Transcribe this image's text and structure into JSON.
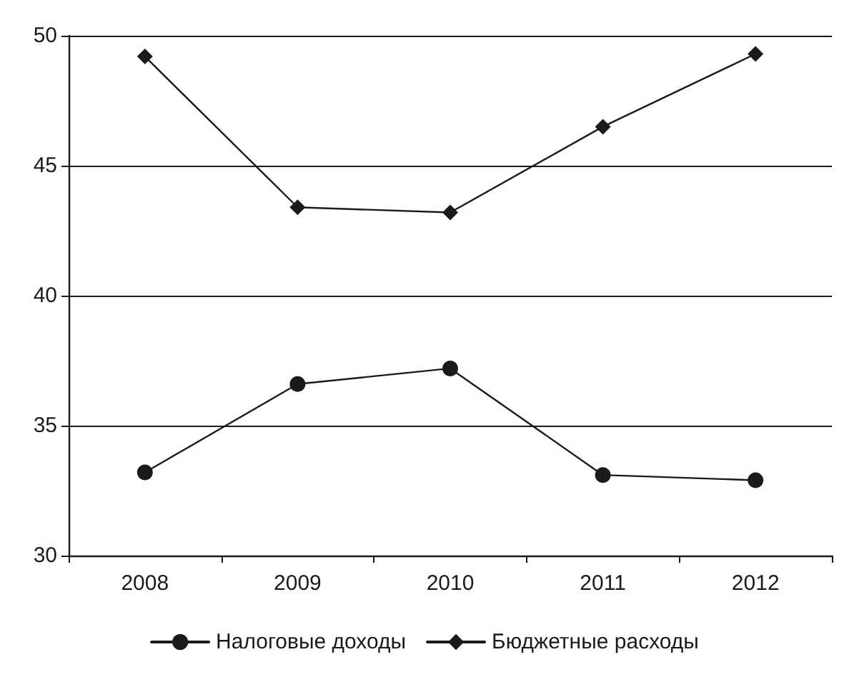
{
  "chart_data": {
    "type": "line",
    "categories": [
      "2008",
      "2009",
      "2010",
      "2011",
      "2012"
    ],
    "series": [
      {
        "name": "Налоговые доходы",
        "color": "#1a1a1a",
        "marker": "circle",
        "values": [
          33.2,
          36.6,
          37.2,
          33.1,
          32.9
        ]
      },
      {
        "name": "Бюджетные расходы",
        "color": "#1a1a1a",
        "marker": "diamond",
        "values": [
          49.2,
          43.4,
          43.2,
          46.5,
          49.3
        ]
      }
    ],
    "ylim": [
      30,
      50
    ],
    "yticks": [
      30,
      35,
      40,
      45,
      50
    ],
    "grid": "y",
    "legend": "bottom",
    "line_style": "solid"
  }
}
